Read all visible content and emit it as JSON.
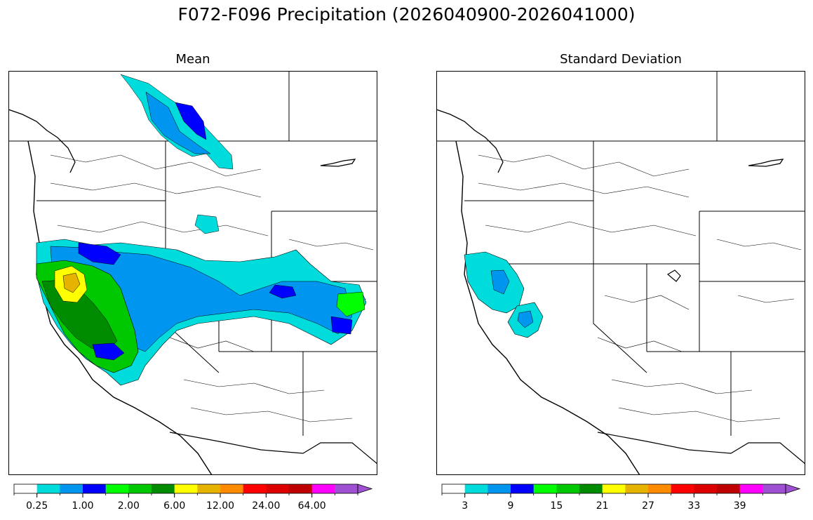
{
  "figure": {
    "title": "F072-F096 Precipitation (2026040900-2026041000)"
  },
  "panels": [
    {
      "title": "Mean",
      "colorbar": {
        "colors": [
          "#ffffff",
          "#00dcdc",
          "#0096f0",
          "#0000ff",
          "#00ff00",
          "#00c800",
          "#008c00",
          "#ffff00",
          "#e6b400",
          "#ff8c00",
          "#ff0000",
          "#dc0000",
          "#be0000",
          "#ff00ff",
          "#a050d2"
        ],
        "tick_labels": [
          "0.25",
          "1.00",
          "2.00",
          "6.00",
          "12.00",
          "24.00",
          "64.00"
        ]
      }
    },
    {
      "title": "Standard Deviation",
      "colorbar": {
        "colors": [
          "#ffffff",
          "#00dcdc",
          "#0096f0",
          "#0000ff",
          "#00ff00",
          "#00c800",
          "#008c00",
          "#ffff00",
          "#e6b400",
          "#ff8c00",
          "#ff0000",
          "#dc0000",
          "#be0000",
          "#ff00ff",
          "#a050d2"
        ],
        "tick_labels": [
          "3",
          "9",
          "15",
          "21",
          "27",
          "33",
          "39"
        ]
      }
    }
  ]
}
